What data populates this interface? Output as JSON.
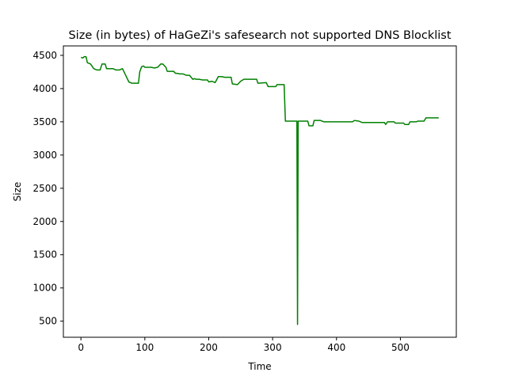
{
  "chart_data": {
    "type": "line",
    "title": "Size (in bytes) of HaGeZi's safesearch not supported DNS Blocklist",
    "xlabel": "Time",
    "ylabel": "Size",
    "xlim": [
      -27.5,
      587.5
    ],
    "ylim": [
      258,
      4642
    ],
    "x_ticks": [
      0,
      100,
      200,
      300,
      400,
      500
    ],
    "y_ticks": [
      500,
      1000,
      1500,
      2000,
      2500,
      3000,
      3500,
      4000,
      4500
    ],
    "grid": false,
    "legend": "none",
    "series": [
      {
        "color": "#008000",
        "points": [
          [
            0,
            4470
          ],
          [
            3,
            4460
          ],
          [
            5,
            4480
          ],
          [
            8,
            4480
          ],
          [
            10,
            4390
          ],
          [
            15,
            4370
          ],
          [
            20,
            4300
          ],
          [
            25,
            4280
          ],
          [
            30,
            4280
          ],
          [
            33,
            4370
          ],
          [
            38,
            4370
          ],
          [
            40,
            4300
          ],
          [
            50,
            4300
          ],
          [
            55,
            4280
          ],
          [
            60,
            4280
          ],
          [
            65,
            4300
          ],
          [
            70,
            4200
          ],
          [
            75,
            4100
          ],
          [
            80,
            4080
          ],
          [
            90,
            4080
          ],
          [
            92,
            4250
          ],
          [
            95,
            4330
          ],
          [
            98,
            4340
          ],
          [
            100,
            4320
          ],
          [
            110,
            4320
          ],
          [
            115,
            4310
          ],
          [
            120,
            4320
          ],
          [
            125,
            4370
          ],
          [
            128,
            4370
          ],
          [
            133,
            4320
          ],
          [
            135,
            4260
          ],
          [
            145,
            4260
          ],
          [
            148,
            4230
          ],
          [
            150,
            4230
          ],
          [
            155,
            4220
          ],
          [
            160,
            4220
          ],
          [
            165,
            4200
          ],
          [
            170,
            4200
          ],
          [
            175,
            4140
          ],
          [
            178,
            4150
          ],
          [
            180,
            4140
          ],
          [
            185,
            4140
          ],
          [
            190,
            4130
          ],
          [
            198,
            4130
          ],
          [
            200,
            4100
          ],
          [
            205,
            4110
          ],
          [
            210,
            4090
          ],
          [
            215,
            4180
          ],
          [
            220,
            4180
          ],
          [
            225,
            4170
          ],
          [
            235,
            4170
          ],
          [
            237,
            4070
          ],
          [
            245,
            4060
          ],
          [
            250,
            4110
          ],
          [
            255,
            4140
          ],
          [
            275,
            4140
          ],
          [
            277,
            4080
          ],
          [
            290,
            4090
          ],
          [
            293,
            4030
          ],
          [
            305,
            4030
          ],
          [
            307,
            4060
          ],
          [
            318,
            4060
          ],
          [
            320,
            3510
          ],
          [
            338,
            3510
          ],
          [
            339,
            450
          ],
          [
            340,
            3510
          ],
          [
            355,
            3510
          ],
          [
            357,
            3440
          ],
          [
            363,
            3440
          ],
          [
            365,
            3520
          ],
          [
            375,
            3520
          ],
          [
            380,
            3500
          ],
          [
            395,
            3500
          ],
          [
            397,
            3500
          ],
          [
            410,
            3500
          ],
          [
            425,
            3500
          ],
          [
            428,
            3520
          ],
          [
            435,
            3510
          ],
          [
            440,
            3490
          ],
          [
            475,
            3490
          ],
          [
            477,
            3460
          ],
          [
            480,
            3500
          ],
          [
            490,
            3500
          ],
          [
            492,
            3480
          ],
          [
            505,
            3480
          ],
          [
            507,
            3460
          ],
          [
            513,
            3460
          ],
          [
            515,
            3500
          ],
          [
            525,
            3500
          ],
          [
            527,
            3510
          ],
          [
            537,
            3510
          ],
          [
            540,
            3560
          ],
          [
            560,
            3560
          ]
        ]
      }
    ]
  }
}
